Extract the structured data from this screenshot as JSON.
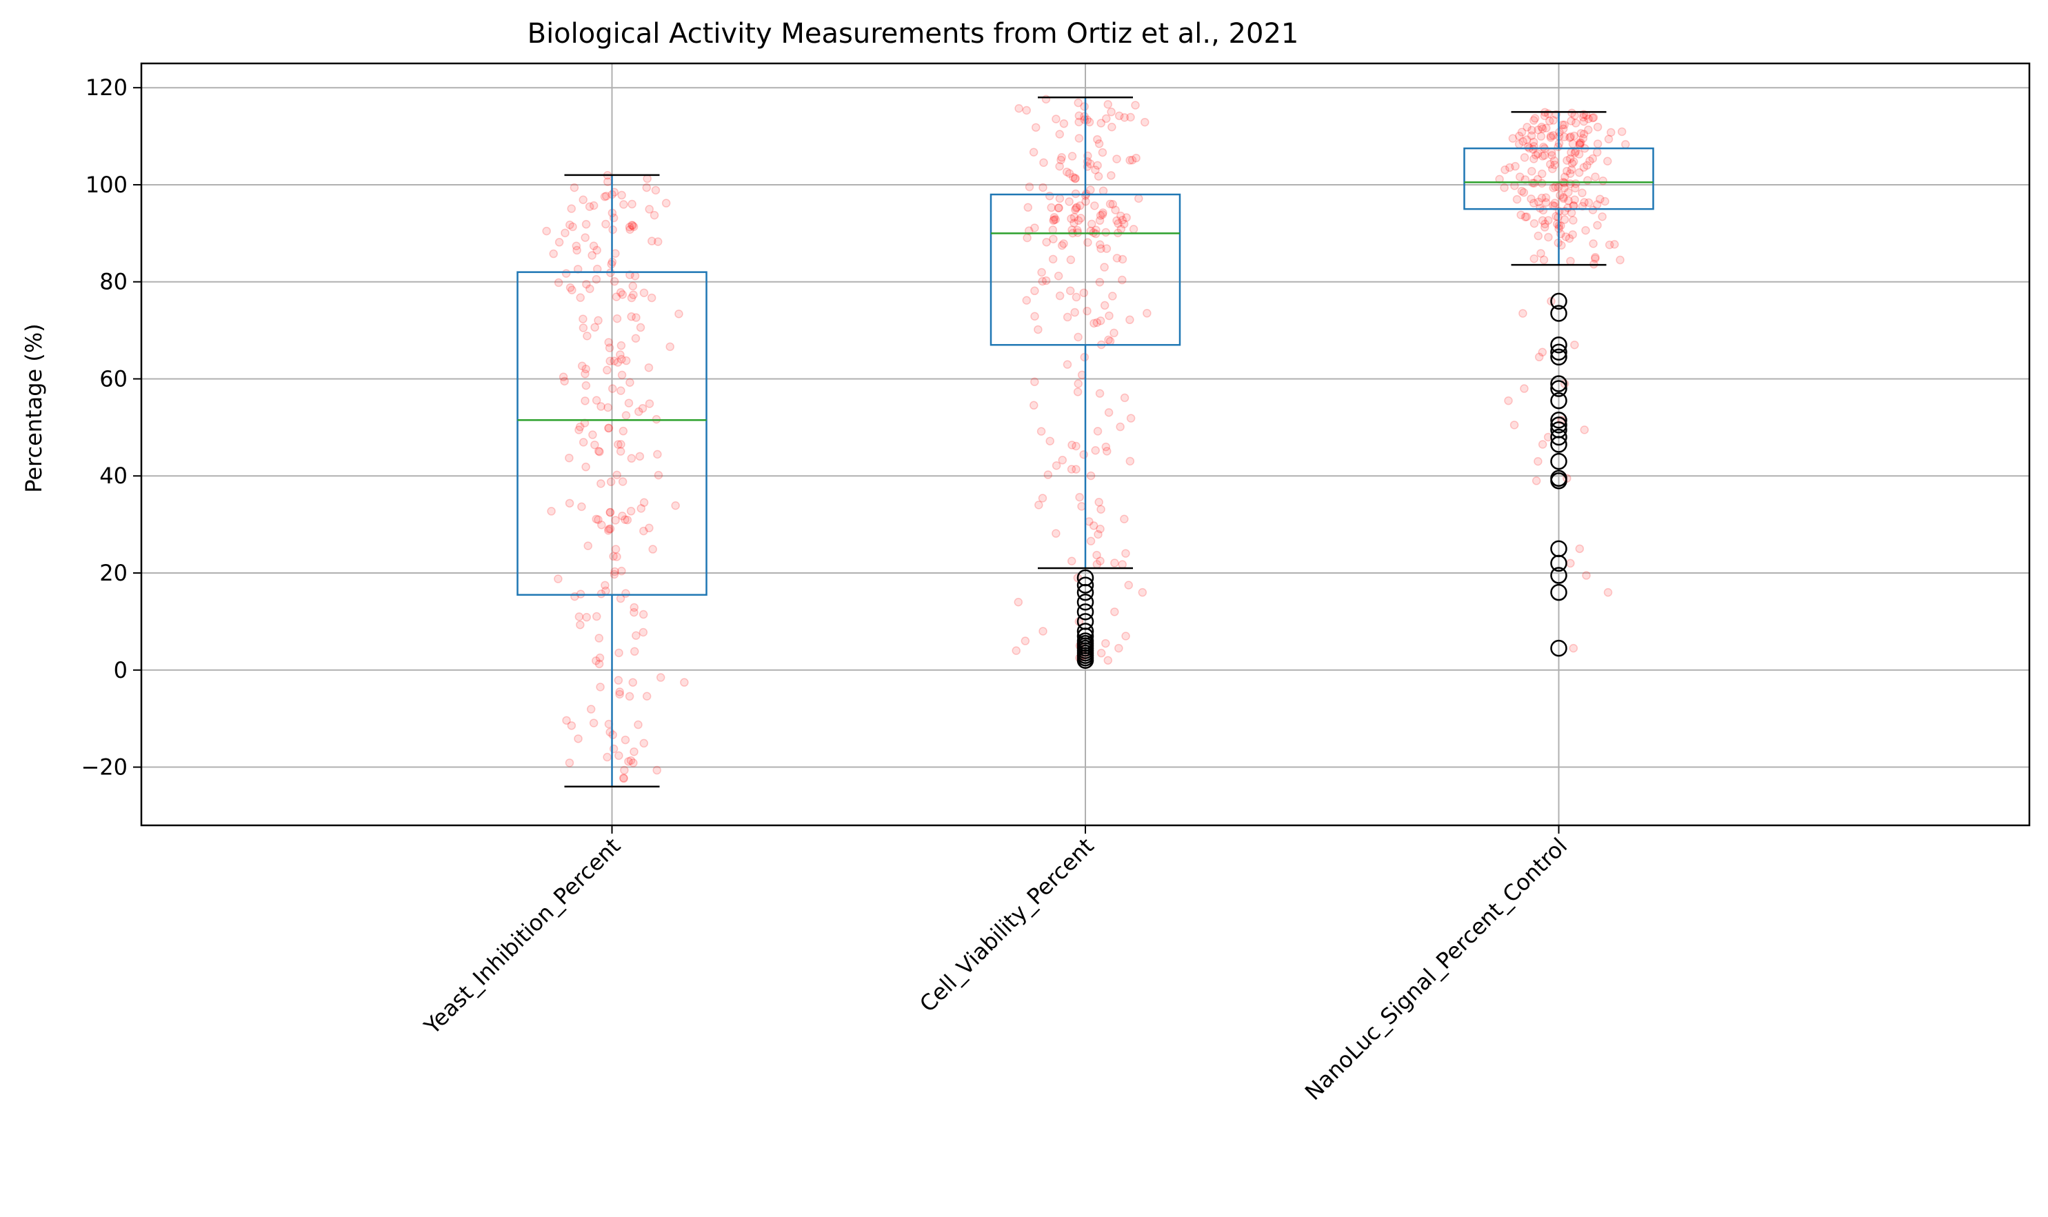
{
  "chart_data": {
    "type": "box",
    "title": "Biological Activity Measurements from Ortiz et al., 2021",
    "xlabel": "",
    "ylabel": "Percentage (%)",
    "ylim": [
      -32,
      125
    ],
    "yticks": [
      -20,
      0,
      20,
      40,
      60,
      80,
      100,
      120
    ],
    "grid": true,
    "categories": [
      "Yeast_Inhibition_Percent",
      "Cell_Viability_Percent",
      "NanoLuc_Signal_Percent_Control"
    ],
    "boxes": [
      {
        "whisker_low": -24,
        "q1": 15.5,
        "median": 51.5,
        "q3": 82,
        "whisker_high": 102,
        "outliers": []
      },
      {
        "whisker_low": 21,
        "q1": 67,
        "median": 90,
        "q3": 98,
        "whisker_high": 118,
        "outliers": [
          19,
          17.5,
          16,
          14,
          12,
          10,
          8,
          7,
          6,
          5.5,
          5,
          4.5,
          4,
          3.5,
          3,
          2.5,
          2
        ]
      },
      {
        "whisker_low": 83.5,
        "q1": 95,
        "median": 100.5,
        "q3": 107.5,
        "whisker_high": 115,
        "outliers": [
          76,
          73.5,
          67,
          65.5,
          64.5,
          59,
          58,
          55.5,
          51.5,
          50.5,
          49.5,
          48,
          46.5,
          43,
          39.5,
          39,
          25,
          22,
          19.5,
          16,
          4.5
        ]
      }
    ],
    "colors": {
      "box": "#1f77b4",
      "median": "#2ca02c",
      "whisker": "#1f77b4",
      "cap": "#000000",
      "outlier": "#000000",
      "points": "#ff0000",
      "grid": "#b0b0b0"
    }
  }
}
